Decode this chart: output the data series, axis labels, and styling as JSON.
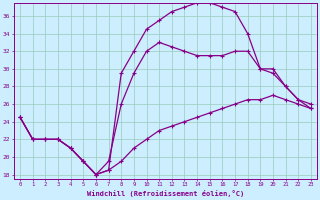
{
  "xlabel": "Windchill (Refroidissement éolien,°C)",
  "bg_color": "#cceeff",
  "line_color": "#880088",
  "grid_color": "#99ccbb",
  "xlim": [
    -0.5,
    23.5
  ],
  "ylim": [
    17.5,
    37.5
  ],
  "xticks": [
    0,
    1,
    2,
    3,
    4,
    5,
    6,
    7,
    8,
    9,
    10,
    11,
    12,
    13,
    14,
    15,
    16,
    17,
    18,
    19,
    20,
    21,
    22,
    23
  ],
  "yticks": [
    18,
    20,
    22,
    24,
    26,
    28,
    30,
    32,
    34,
    36
  ],
  "line1_x": [
    0,
    1,
    2,
    3,
    4,
    5,
    6,
    7,
    8,
    9,
    10,
    11,
    12,
    13,
    14,
    15,
    16,
    17,
    18,
    19,
    20,
    21,
    22,
    23
  ],
  "line1_y": [
    24.5,
    22.0,
    22.0,
    22.0,
    21.0,
    19.5,
    18.0,
    18.5,
    19.5,
    21.0,
    22.0,
    23.0,
    23.5,
    24.0,
    24.5,
    25.0,
    25.5,
    26.0,
    26.5,
    26.5,
    27.0,
    26.5,
    26.0,
    25.5
  ],
  "line2_x": [
    0,
    1,
    2,
    3,
    4,
    5,
    6,
    7,
    8,
    9,
    10,
    11,
    12,
    13,
    14,
    15,
    16,
    17,
    18,
    19,
    20,
    21,
    22,
    23
  ],
  "line2_y": [
    24.5,
    22.0,
    22.0,
    22.0,
    21.0,
    19.5,
    18.0,
    19.5,
    26.0,
    29.5,
    32.0,
    33.0,
    32.5,
    32.0,
    31.5,
    31.5,
    31.5,
    32.0,
    32.0,
    30.0,
    30.0,
    28.0,
    26.5,
    26.0
  ],
  "line3_x": [
    0,
    1,
    2,
    3,
    4,
    5,
    6,
    7,
    8,
    9,
    10,
    11,
    12,
    13,
    14,
    15,
    16,
    17,
    18,
    19,
    20,
    21,
    22,
    23
  ],
  "line3_y": [
    24.5,
    22.0,
    22.0,
    22.0,
    21.0,
    19.5,
    18.0,
    18.5,
    29.5,
    32.0,
    34.5,
    35.5,
    36.5,
    37.0,
    37.5,
    37.5,
    37.0,
    36.5,
    34.0,
    30.0,
    29.5,
    28.0,
    26.5,
    25.5
  ]
}
